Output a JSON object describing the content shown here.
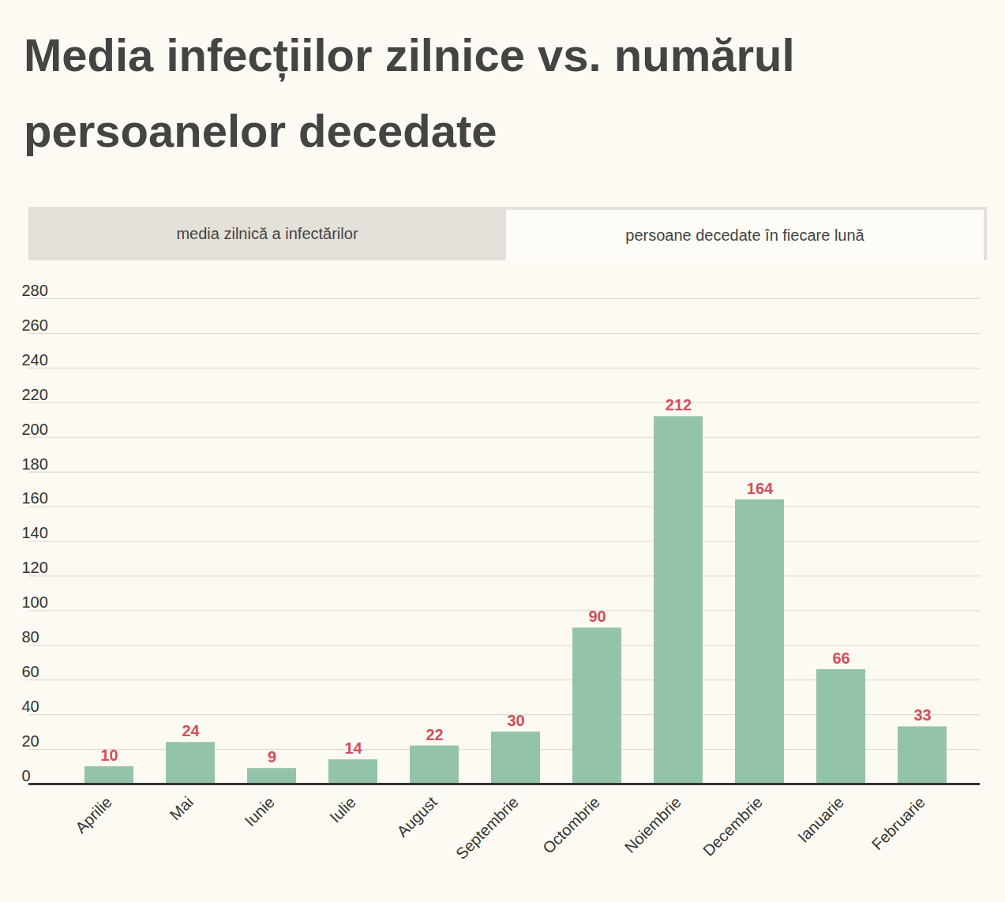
{
  "chart_data": {
    "type": "bar",
    "title": "Media infecțiilor zilnice vs. numărul persoanelor decedate",
    "tabs": [
      {
        "label": "media zilnică a infectărilor",
        "active": false
      },
      {
        "label": "persoane decedate în fiecare lună",
        "active": true
      }
    ],
    "categories": [
      "Aprilie",
      "Mai",
      "Iunie",
      "Iulie",
      "August",
      "Septembrie",
      "Octombrie",
      "Noiembrie",
      "Decembrie",
      "Ianuarie",
      "Februarie"
    ],
    "values": [
      10,
      24,
      9,
      14,
      22,
      30,
      90,
      212,
      164,
      66,
      33
    ],
    "color": "#93c3a8",
    "ylim": [
      0,
      280
    ],
    "yticks": [
      0,
      20,
      40,
      60,
      80,
      100,
      120,
      140,
      160,
      180,
      200,
      220,
      240,
      260,
      280
    ],
    "grid": true,
    "data_labels": true
  }
}
